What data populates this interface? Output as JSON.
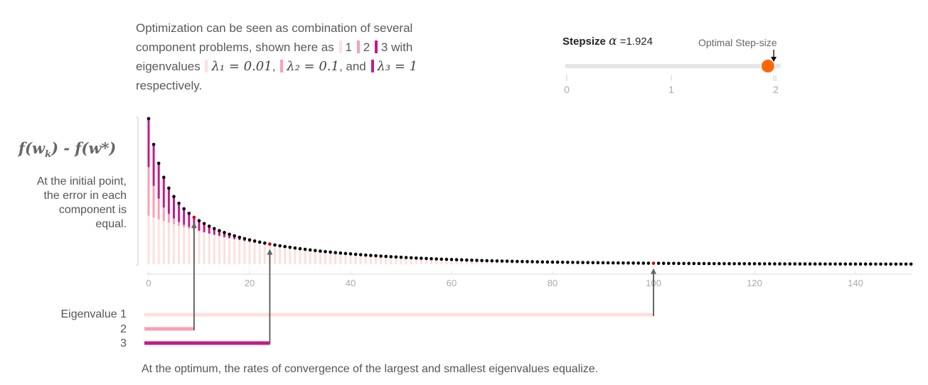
{
  "intro": {
    "text_a": "Optimization can be seen as combination of several component problems, shown here as",
    "c1": "1",
    "c2": "2",
    "c3": "3",
    "text_b": "with eigenvalues",
    "lambda1": "λ₁ = 0.01",
    "lambda2": "λ₂ = 0.1",
    "text_and": ", and",
    "lambda3": "λ₃ = 1",
    "text_c": "respectively."
  },
  "slider": {
    "label_bold": "Stepsize",
    "alpha": "α",
    "eq": "=",
    "value": "1.924",
    "value_num": 1.924,
    "min": 0,
    "max": 2,
    "ticks": [
      "0",
      "1",
      "2"
    ],
    "optimal_label": "Optimal Step-size",
    "optimal_value": 1.98
  },
  "y_axis": {
    "f": "f",
    "w": "w",
    "k": "k",
    "star": "*",
    "minus": "-"
  },
  "note_left": "At the initial point, the error in each component is equal.",
  "chart_data": {
    "type": "bar",
    "x_ticks": [
      "0",
      "20",
      "40",
      "60",
      "80",
      "100",
      "120",
      "140"
    ],
    "xlim": [
      0,
      151
    ],
    "components": [
      {
        "name": "1",
        "eigenvalue": 0.01,
        "color": "#fde0dd",
        "equalize_iter": 100
      },
      {
        "name": "2",
        "eigenvalue": 0.1,
        "color": "#fa9fb5",
        "equalize_iter": 9
      },
      {
        "name": "3",
        "eigenvalue": 1,
        "color": "#c51b8a",
        "equalize_iter": 24
      }
    ],
    "step_size": 1.924,
    "markers": [
      9,
      24,
      100
    ]
  },
  "eigen_labels": [
    "Eigenvalue 1",
    "2",
    "3"
  ],
  "colors": {
    "c1": "#fde0dd",
    "c2": "#fa9fb5",
    "c3": "#c51b8a",
    "handle": "#ff6600",
    "marker": "#cc0000"
  },
  "bottom_note": "At the optimum, the rates of convergence of the largest and smallest eigenvalues equalize."
}
